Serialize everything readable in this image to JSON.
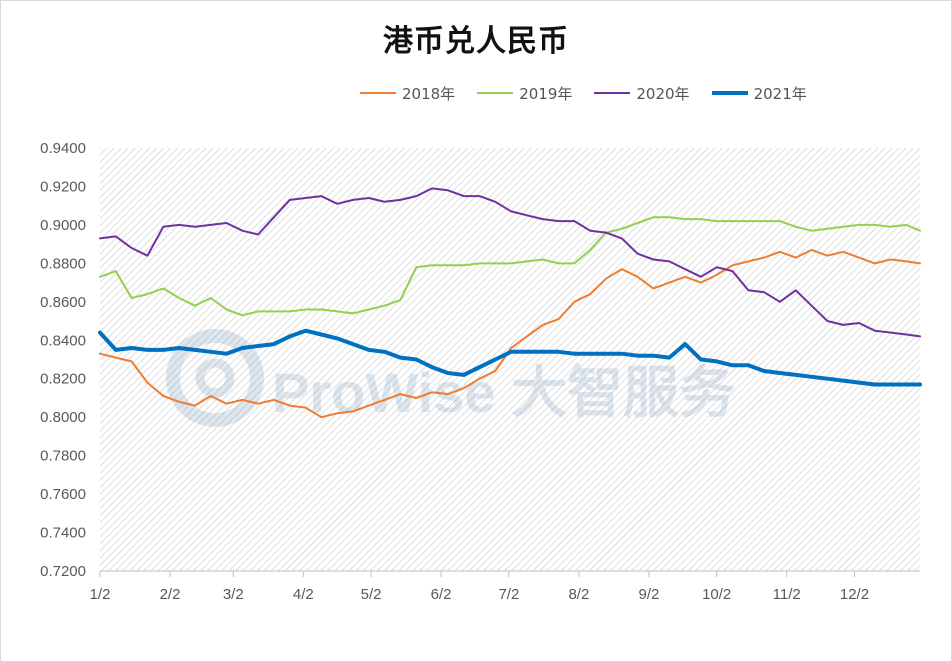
{
  "chart_data": {
    "type": "line",
    "title": "港币兑人民币",
    "xlabel": "",
    "ylabel": "",
    "ylim": [
      0.72,
      0.94
    ],
    "y_ticks": [
      "0.9400",
      "0.9200",
      "0.9000",
      "0.8800",
      "0.8600",
      "0.8400",
      "0.8200",
      "0.8000",
      "0.7800",
      "0.7600",
      "0.7400",
      "0.7200"
    ],
    "x_ticks": [
      "1/2",
      "2/2",
      "3/2",
      "4/2",
      "5/2",
      "6/2",
      "7/2",
      "8/2",
      "9/2",
      "10/2",
      "11/2",
      "12/2"
    ],
    "legend_position": "top",
    "grid": false,
    "watermark": "ProWise 大智服务",
    "series": [
      {
        "name": "2018年",
        "color": "#ed7d31",
        "points": [
          [
            "1/2",
            0.833
          ],
          [
            "1/9",
            0.831
          ],
          [
            "1/16",
            0.829
          ],
          [
            "1/23",
            0.818
          ],
          [
            "1/30",
            0.811
          ],
          [
            "2/6",
            0.808
          ],
          [
            "2/13",
            0.806
          ],
          [
            "2/20",
            0.811
          ],
          [
            "2/27",
            0.807
          ],
          [
            "3/6",
            0.809
          ],
          [
            "3/13",
            0.807
          ],
          [
            "3/20",
            0.809
          ],
          [
            "3/27",
            0.806
          ],
          [
            "4/3",
            0.805
          ],
          [
            "4/10",
            0.8
          ],
          [
            "4/17",
            0.802
          ],
          [
            "4/24",
            0.803
          ],
          [
            "5/1",
            0.806
          ],
          [
            "5/8",
            0.809
          ],
          [
            "5/15",
            0.812
          ],
          [
            "5/22",
            0.81
          ],
          [
            "5/29",
            0.813
          ],
          [
            "6/5",
            0.812
          ],
          [
            "6/12",
            0.815
          ],
          [
            "6/19",
            0.82
          ],
          [
            "6/26",
            0.824
          ],
          [
            "7/3",
            0.836
          ],
          [
            "7/10",
            0.842
          ],
          [
            "7/17",
            0.848
          ],
          [
            "7/24",
            0.851
          ],
          [
            "7/31",
            0.86
          ],
          [
            "8/7",
            0.864
          ],
          [
            "8/14",
            0.872
          ],
          [
            "8/21",
            0.877
          ],
          [
            "8/28",
            0.873
          ],
          [
            "9/4",
            0.867
          ],
          [
            "9/11",
            0.87
          ],
          [
            "9/18",
            0.873
          ],
          [
            "9/25",
            0.87
          ],
          [
            "10/2",
            0.874
          ],
          [
            "10/9",
            0.879
          ],
          [
            "10/16",
            0.881
          ],
          [
            "10/23",
            0.883
          ],
          [
            "10/30",
            0.886
          ],
          [
            "11/6",
            0.883
          ],
          [
            "11/13",
            0.887
          ],
          [
            "11/20",
            0.884
          ],
          [
            "11/27",
            0.886
          ],
          [
            "12/4",
            0.883
          ],
          [
            "12/11",
            0.88
          ],
          [
            "12/18",
            0.882
          ],
          [
            "12/25",
            0.881
          ],
          [
            "12/31",
            0.88
          ]
        ]
      },
      {
        "name": "2019年",
        "color": "#92d050",
        "points": [
          [
            "1/2",
            0.873
          ],
          [
            "1/9",
            0.876
          ],
          [
            "1/16",
            0.862
          ],
          [
            "1/23",
            0.864
          ],
          [
            "1/30",
            0.867
          ],
          [
            "2/6",
            0.862
          ],
          [
            "2/13",
            0.858
          ],
          [
            "2/20",
            0.862
          ],
          [
            "2/27",
            0.856
          ],
          [
            "3/6",
            0.853
          ],
          [
            "3/13",
            0.855
          ],
          [
            "3/20",
            0.855
          ],
          [
            "3/27",
            0.855
          ],
          [
            "4/3",
            0.856
          ],
          [
            "4/10",
            0.856
          ],
          [
            "4/17",
            0.855
          ],
          [
            "4/24",
            0.854
          ],
          [
            "5/1",
            0.856
          ],
          [
            "5/8",
            0.858
          ],
          [
            "5/15",
            0.861
          ],
          [
            "5/22",
            0.878
          ],
          [
            "5/29",
            0.879
          ],
          [
            "6/5",
            0.879
          ],
          [
            "6/12",
            0.879
          ],
          [
            "6/19",
            0.88
          ],
          [
            "6/26",
            0.88
          ],
          [
            "7/3",
            0.88
          ],
          [
            "7/10",
            0.881
          ],
          [
            "7/17",
            0.882
          ],
          [
            "7/24",
            0.88
          ],
          [
            "7/31",
            0.88
          ],
          [
            "8/7",
            0.887
          ],
          [
            "8/14",
            0.896
          ],
          [
            "8/21",
            0.898
          ],
          [
            "8/28",
            0.901
          ],
          [
            "9/4",
            0.904
          ],
          [
            "9/11",
            0.904
          ],
          [
            "9/18",
            0.903
          ],
          [
            "9/25",
            0.903
          ],
          [
            "10/2",
            0.902
          ],
          [
            "10/9",
            0.902
          ],
          [
            "10/16",
            0.902
          ],
          [
            "10/23",
            0.902
          ],
          [
            "10/30",
            0.902
          ],
          [
            "11/6",
            0.899
          ],
          [
            "11/13",
            0.897
          ],
          [
            "11/20",
            0.898
          ],
          [
            "11/27",
            0.899
          ],
          [
            "12/4",
            0.9
          ],
          [
            "12/11",
            0.9
          ],
          [
            "12/18",
            0.899
          ],
          [
            "12/25",
            0.9
          ],
          [
            "12/31",
            0.897
          ]
        ]
      },
      {
        "name": "2020年",
        "color": "#7030a0",
        "points": [
          [
            "1/2",
            0.893
          ],
          [
            "1/9",
            0.894
          ],
          [
            "1/16",
            0.888
          ],
          [
            "1/23",
            0.884
          ],
          [
            "1/30",
            0.899
          ],
          [
            "2/6",
            0.9
          ],
          [
            "2/13",
            0.899
          ],
          [
            "2/20",
            0.9
          ],
          [
            "2/27",
            0.901
          ],
          [
            "3/6",
            0.897
          ],
          [
            "3/13",
            0.895
          ],
          [
            "3/20",
            0.904
          ],
          [
            "3/27",
            0.913
          ],
          [
            "4/3",
            0.914
          ],
          [
            "4/10",
            0.915
          ],
          [
            "4/17",
            0.911
          ],
          [
            "4/24",
            0.913
          ],
          [
            "5/1",
            0.914
          ],
          [
            "5/8",
            0.912
          ],
          [
            "5/15",
            0.913
          ],
          [
            "5/22",
            0.915
          ],
          [
            "5/29",
            0.919
          ],
          [
            "6/5",
            0.918
          ],
          [
            "6/12",
            0.915
          ],
          [
            "6/19",
            0.915
          ],
          [
            "6/26",
            0.912
          ],
          [
            "7/3",
            0.907
          ],
          [
            "7/10",
            0.905
          ],
          [
            "7/17",
            0.903
          ],
          [
            "7/24",
            0.902
          ],
          [
            "7/31",
            0.902
          ],
          [
            "8/7",
            0.897
          ],
          [
            "8/14",
            0.896
          ],
          [
            "8/21",
            0.893
          ],
          [
            "8/28",
            0.885
          ],
          [
            "9/4",
            0.882
          ],
          [
            "9/11",
            0.881
          ],
          [
            "9/18",
            0.877
          ],
          [
            "9/25",
            0.873
          ],
          [
            "10/2",
            0.878
          ],
          [
            "10/9",
            0.876
          ],
          [
            "10/16",
            0.866
          ],
          [
            "10/23",
            0.865
          ],
          [
            "10/30",
            0.86
          ],
          [
            "11/6",
            0.866
          ],
          [
            "11/13",
            0.858
          ],
          [
            "11/20",
            0.85
          ],
          [
            "11/27",
            0.848
          ],
          [
            "12/4",
            0.849
          ],
          [
            "12/11",
            0.845
          ],
          [
            "12/18",
            0.844
          ],
          [
            "12/25",
            0.843
          ],
          [
            "12/31",
            0.842
          ]
        ]
      },
      {
        "name": "2021年",
        "color": "#0070c0",
        "points": [
          [
            "1/2",
            0.844
          ],
          [
            "1/9",
            0.835
          ],
          [
            "1/16",
            0.836
          ],
          [
            "1/23",
            0.835
          ],
          [
            "1/30",
            0.835
          ],
          [
            "2/6",
            0.836
          ],
          [
            "2/13",
            0.835
          ],
          [
            "2/20",
            0.834
          ],
          [
            "2/27",
            0.833
          ],
          [
            "3/6",
            0.836
          ],
          [
            "3/13",
            0.837
          ],
          [
            "3/20",
            0.838
          ],
          [
            "3/27",
            0.842
          ],
          [
            "4/3",
            0.845
          ],
          [
            "4/10",
            0.843
          ],
          [
            "4/17",
            0.841
          ],
          [
            "4/24",
            0.838
          ],
          [
            "5/1",
            0.835
          ],
          [
            "5/8",
            0.834
          ],
          [
            "5/15",
            0.831
          ],
          [
            "5/22",
            0.83
          ],
          [
            "5/29",
            0.826
          ],
          [
            "6/5",
            0.823
          ],
          [
            "6/12",
            0.822
          ],
          [
            "6/19",
            0.826
          ],
          [
            "6/26",
            0.83
          ],
          [
            "7/3",
            0.834
          ],
          [
            "7/10",
            0.834
          ],
          [
            "7/17",
            0.834
          ],
          [
            "7/24",
            0.834
          ],
          [
            "7/31",
            0.833
          ],
          [
            "8/7",
            0.833
          ],
          [
            "8/14",
            0.833
          ],
          [
            "8/21",
            0.833
          ],
          [
            "8/28",
            0.832
          ],
          [
            "9/4",
            0.832
          ],
          [
            "9/11",
            0.831
          ],
          [
            "9/18",
            0.838
          ],
          [
            "9/25",
            0.83
          ],
          [
            "10/2",
            0.829
          ],
          [
            "10/9",
            0.827
          ],
          [
            "10/16",
            0.827
          ],
          [
            "10/23",
            0.824
          ],
          [
            "10/30",
            0.823
          ],
          [
            "11/6",
            0.822
          ],
          [
            "11/13",
            0.821
          ],
          [
            "11/20",
            0.82
          ],
          [
            "11/27",
            0.819
          ],
          [
            "12/4",
            0.818
          ],
          [
            "12/11",
            0.817
          ],
          [
            "12/18",
            0.817
          ],
          [
            "12/25",
            0.817
          ],
          [
            "12/31",
            0.817
          ]
        ]
      }
    ]
  }
}
